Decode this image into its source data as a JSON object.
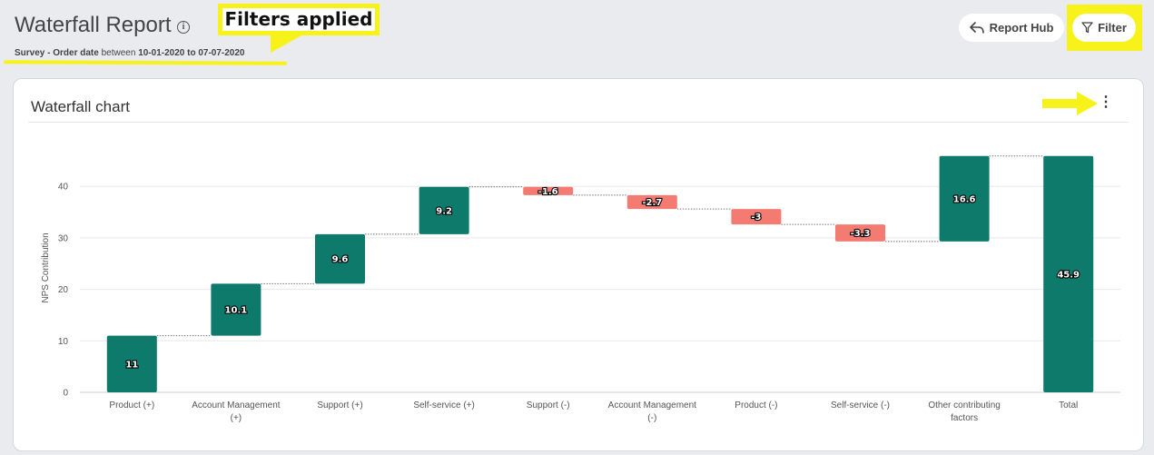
{
  "header": {
    "title": "Waterfall Report",
    "subtitle_prefix": "Survey - Order date",
    "subtitle_between": " between ",
    "subtitle_range": "10-01-2020 to 07-07-2020",
    "callout_text": "Filters applied",
    "report_hub_label": "Report Hub",
    "filter_label": "Filter"
  },
  "card": {
    "title": "Waterfall chart"
  },
  "colors": {
    "positive": "#0e7a6c",
    "negative": "#f47b72",
    "highlight": "#f7f31a"
  },
  "chart_data": {
    "type": "bar",
    "subtype": "waterfall",
    "ylabel": "NPS Contribution",
    "ylim": [
      0,
      48
    ],
    "yticks": [
      0,
      10,
      20,
      30,
      40
    ],
    "categories": [
      "Product (+)",
      "Account Management (+)",
      "Support (+)",
      "Self-service (+)",
      "Support (-)",
      "Account Management (-)",
      "Product (-)",
      "Self-service (-)",
      "Other contributing factors",
      "Total"
    ],
    "label_lines": [
      [
        "Product (+)"
      ],
      [
        "Account Management",
        "(+)"
      ],
      [
        "Support (+)"
      ],
      [
        "Self-service (+)"
      ],
      [
        "Support (-)"
      ],
      [
        "Account Management",
        "(-)"
      ],
      [
        "Product (-)"
      ],
      [
        "Self-service (-)"
      ],
      [
        "Other contributing",
        "factors"
      ],
      [
        "Total"
      ]
    ],
    "values": [
      11,
      10.1,
      9.6,
      9.2,
      -1.6,
      -2.7,
      -3,
      -3.3,
      16.6,
      45.9
    ],
    "value_labels": [
      "11",
      "10.1",
      "9.6",
      "9.2",
      "-1.6",
      "-2.7",
      "-3",
      "-3.3",
      "16.6",
      "45.9"
    ],
    "total_index": 9,
    "grid": true
  }
}
